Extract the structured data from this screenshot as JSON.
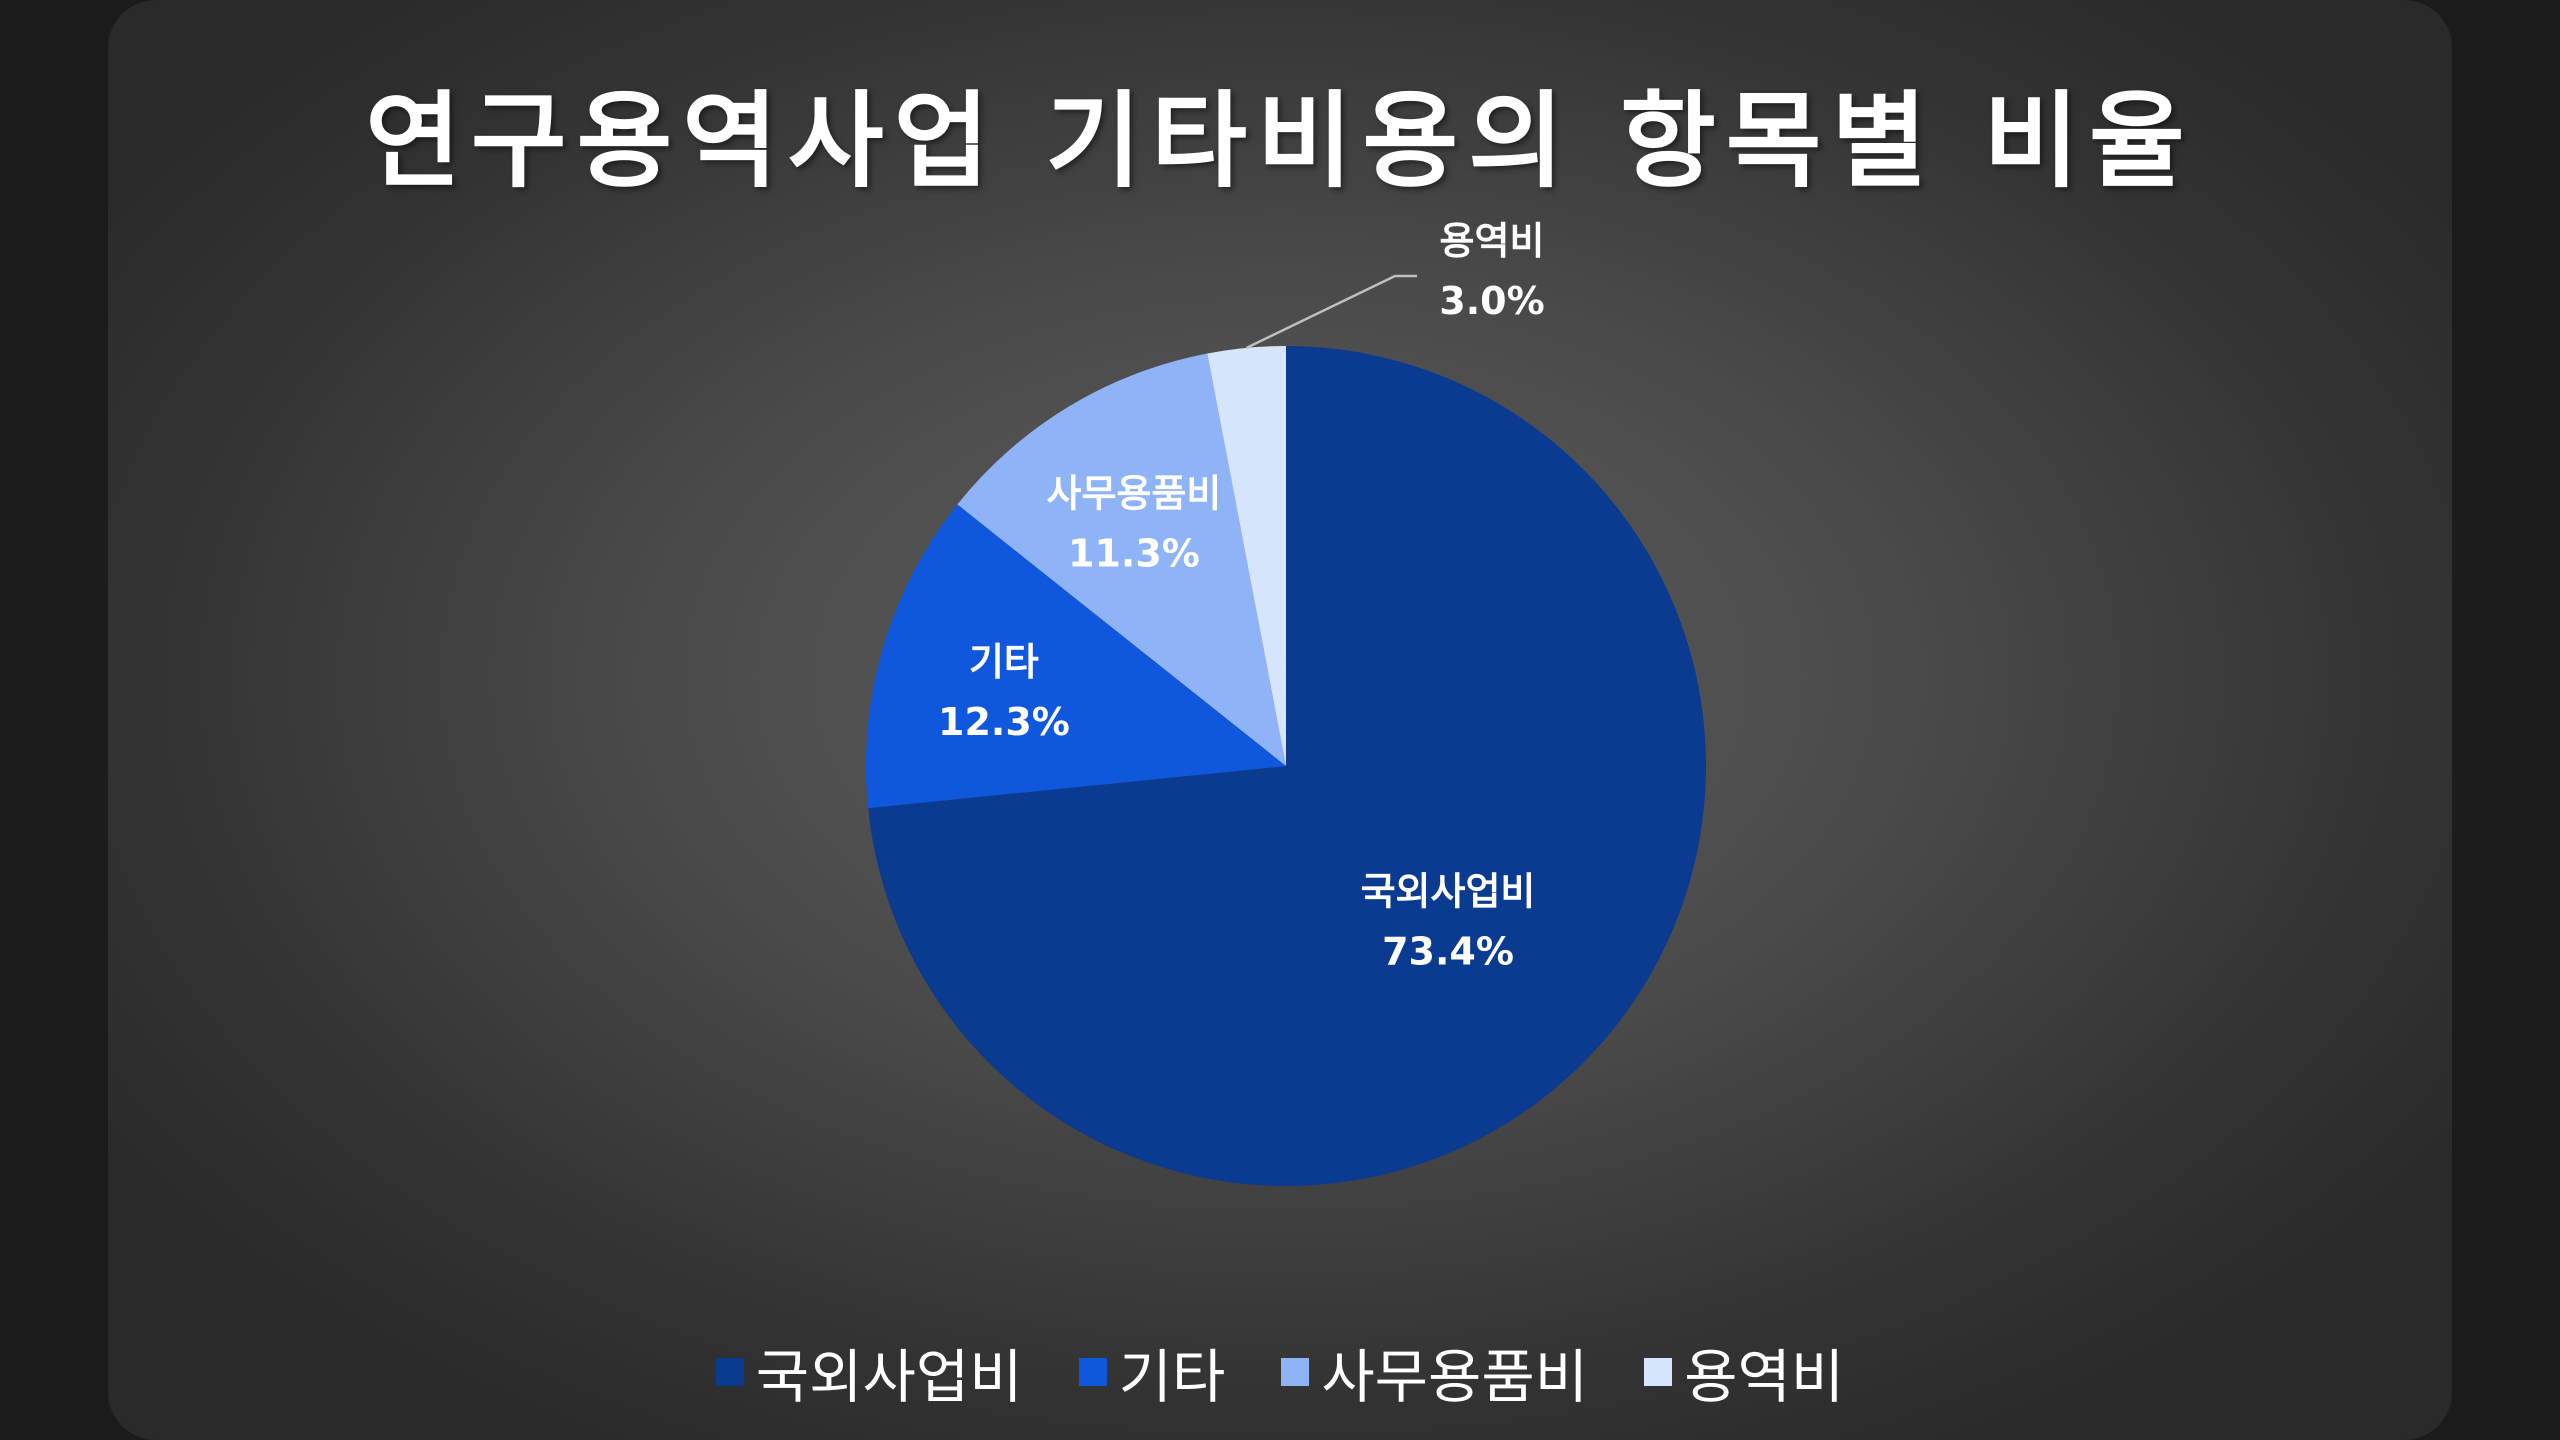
{
  "chart_data": {
    "type": "pie",
    "title": "연구용역사업 기타비용의 항목별 비율",
    "categories": [
      "국외사업비",
      "기타",
      "사무용품비",
      "용역비"
    ],
    "values": [
      73.4,
      12.3,
      11.3,
      3.0
    ],
    "value_labels": [
      "73.4%",
      "12.3%",
      "11.3%",
      "3.0%"
    ],
    "colors": [
      "#0b3a91",
      "#0f57dc",
      "#8fb3f7",
      "#d6e4fc"
    ],
    "legend_position": "bottom",
    "start_angle": "12 o'clock, clockwise"
  }
}
